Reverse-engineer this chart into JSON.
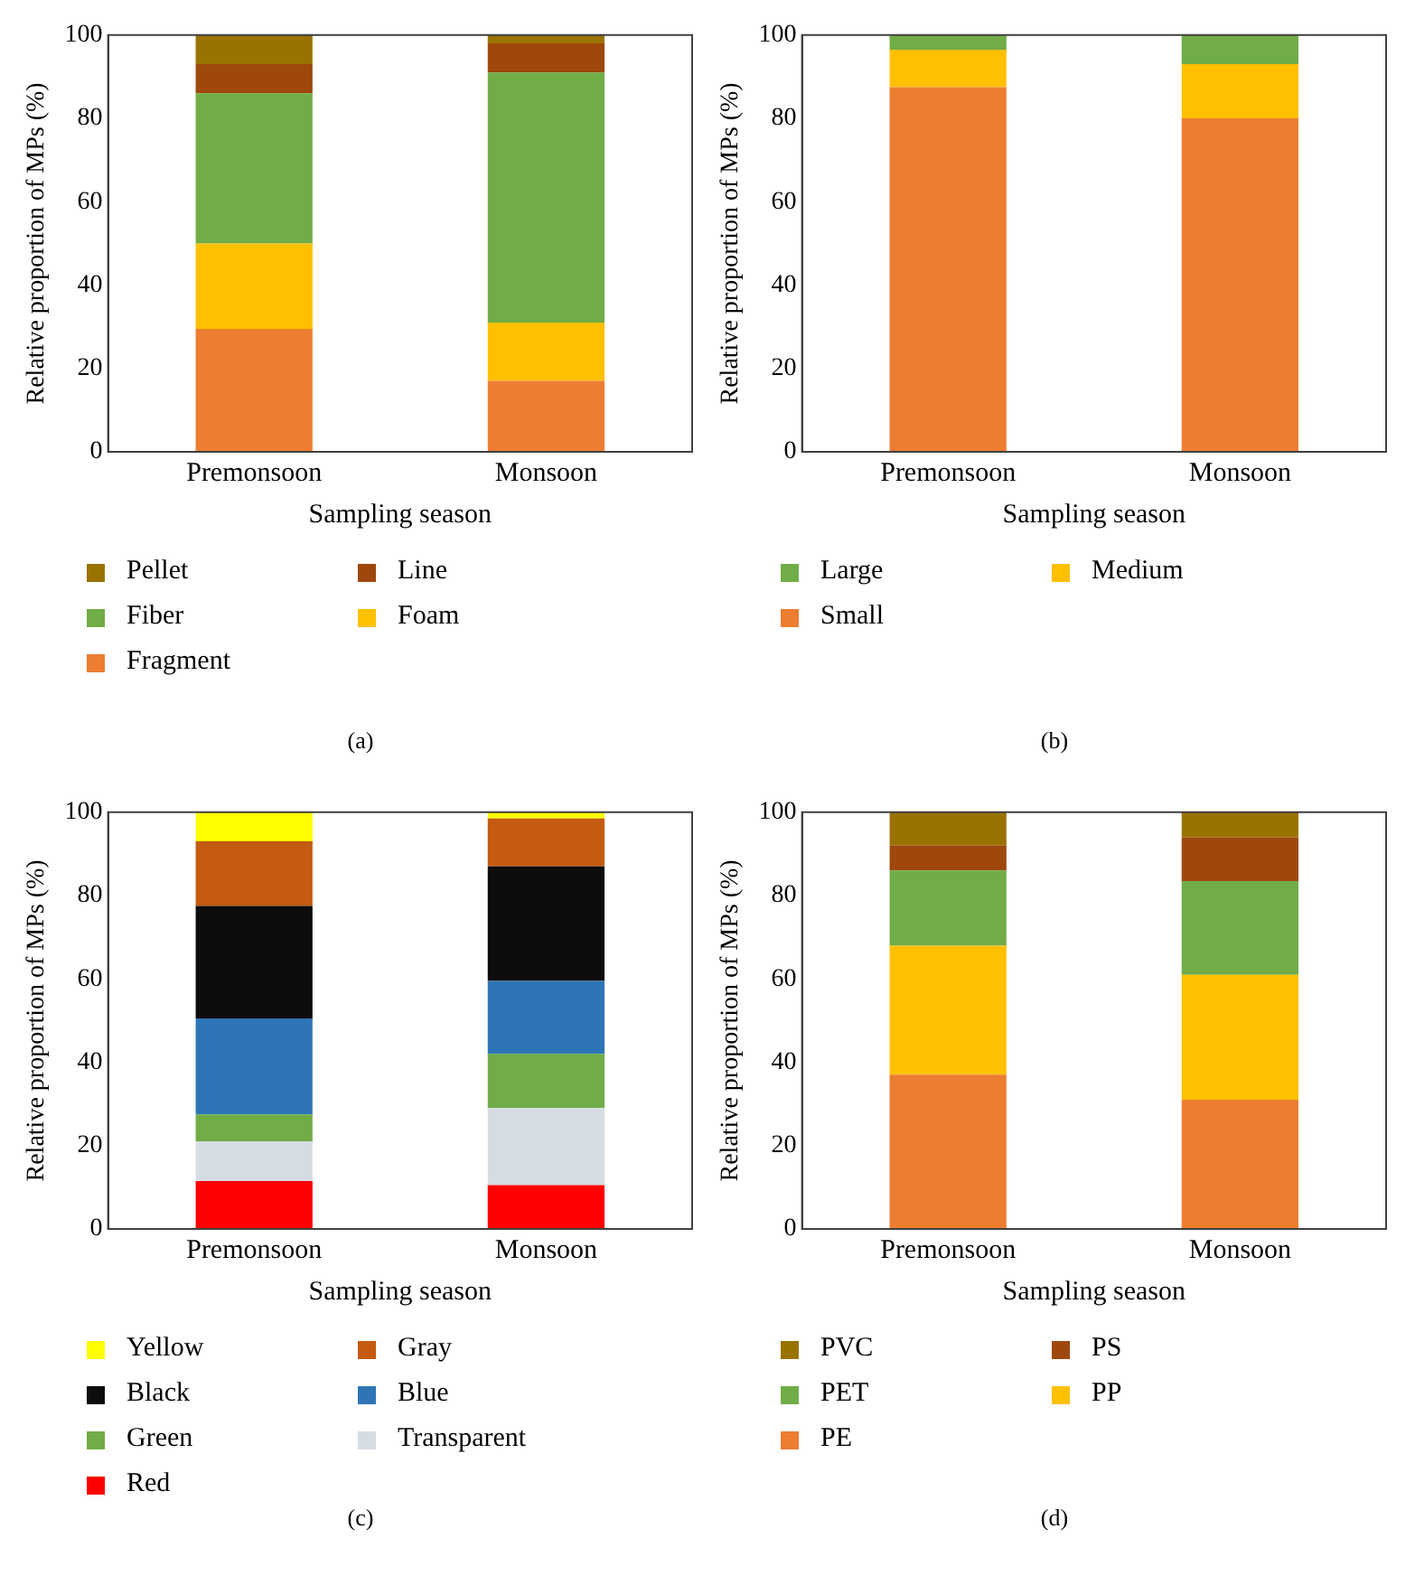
{
  "chart_data": [
    {
      "type": "bar",
      "stacked": true,
      "xlabel": "Sampling season",
      "ylabel": "Relative proportion of MPs (%)",
      "categories": [
        "Premonsoon",
        "Monsoon"
      ],
      "ylim": [
        0,
        100
      ],
      "yticks": [
        0,
        20,
        40,
        60,
        80,
        100
      ],
      "grid": false,
      "legend": "bottom",
      "annotations": [
        "(a)"
      ],
      "series": [
        {
          "name": "Fragment",
          "color": "#ed7d31",
          "values": [
            29.5,
            17
          ]
        },
        {
          "name": "Foam",
          "color": "#ffc000",
          "values": [
            20.5,
            14
          ]
        },
        {
          "name": "Fiber",
          "color": "#70ad47",
          "values": [
            36,
            60
          ]
        },
        {
          "name": "Line",
          "color": "#9e480e",
          "values": [
            7,
            7
          ]
        },
        {
          "name": "Pellet",
          "color": "#997300",
          "values": [
            7,
            2
          ]
        }
      ]
    },
    {
      "type": "bar",
      "stacked": true,
      "xlabel": "Sampling season",
      "ylabel": "Relative proportion of MPs (%)",
      "categories": [
        "Premonsoon",
        "Monsoon"
      ],
      "ylim": [
        0,
        100
      ],
      "yticks": [
        0,
        20,
        40,
        60,
        80,
        100
      ],
      "grid": false,
      "legend": "bottom",
      "annotations": [
        "(b)"
      ],
      "series": [
        {
          "name": "Small",
          "color": "#ed7d31",
          "values": [
            87.5,
            80
          ]
        },
        {
          "name": "Medium",
          "color": "#ffc000",
          "values": [
            9,
            13
          ]
        },
        {
          "name": "Large",
          "color": "#70ad47",
          "values": [
            3.5,
            7
          ]
        }
      ]
    },
    {
      "type": "bar",
      "stacked": true,
      "xlabel": "Sampling season",
      "ylabel": "Relative proportion of MPs (%)",
      "categories": [
        "Premonsoon",
        "Monsoon"
      ],
      "ylim": [
        0,
        100
      ],
      "yticks": [
        0,
        20,
        40,
        60,
        80,
        100
      ],
      "grid": false,
      "legend": "bottom",
      "annotations": [
        "(c)"
      ],
      "series": [
        {
          "name": "Red",
          "color": "#ff0000",
          "values": [
            11.5,
            10.5
          ]
        },
        {
          "name": "Transparent",
          "color": "#d6dce4",
          "values": [
            9.5,
            18.5
          ]
        },
        {
          "name": "Green",
          "color": "#70ad47",
          "values": [
            6.5,
            13
          ]
        },
        {
          "name": "Blue",
          "color": "#2e75b6",
          "values": [
            23,
            17.5
          ]
        },
        {
          "name": "Black",
          "color": "#0d0d0d",
          "values": [
            27,
            27.5
          ]
        },
        {
          "name": "Gray",
          "color": "#c55a11",
          "values": [
            15.5,
            11.5
          ]
        },
        {
          "name": "Yellow",
          "color": "#ffff00",
          "values": [
            7,
            1.5
          ]
        }
      ]
    },
    {
      "type": "bar",
      "stacked": true,
      "xlabel": "Sampling season",
      "ylabel": "Relative proportion of MPs (%)",
      "categories": [
        "Premonsoon",
        "Monsoon"
      ],
      "ylim": [
        0,
        100
      ],
      "yticks": [
        0,
        20,
        40,
        60,
        80,
        100
      ],
      "grid": false,
      "legend": "bottom",
      "annotations": [
        "(d)"
      ],
      "series": [
        {
          "name": "PE",
          "color": "#ed7d31",
          "values": [
            37,
            31
          ]
        },
        {
          "name": "PP",
          "color": "#ffc000",
          "values": [
            31,
            30
          ]
        },
        {
          "name": "PET",
          "color": "#70ad47",
          "values": [
            18,
            22.5
          ]
        },
        {
          "name": "PS",
          "color": "#9e480e",
          "values": [
            6,
            10.5
          ]
        },
        {
          "name": "PVC",
          "color": "#997300",
          "values": [
            8,
            6
          ]
        }
      ]
    }
  ]
}
